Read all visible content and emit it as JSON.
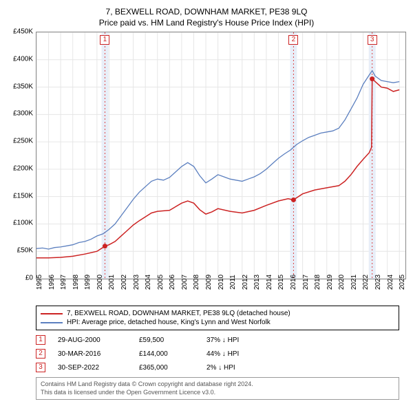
{
  "title": "7, BEXWELL ROAD, DOWNHAM MARKET, PE38 9LQ",
  "subtitle": "Price paid vs. HM Land Registry's House Price Index (HPI)",
  "chart": {
    "type": "line",
    "background_color": "#ffffff",
    "grid_color": "#e6e6e6",
    "border_color": "#888888",
    "x_range": [
      1995,
      2025.5
    ],
    "y_range": [
      0,
      450000
    ],
    "y_ticks": [
      0,
      50000,
      100000,
      150000,
      200000,
      250000,
      300000,
      350000,
      400000,
      450000
    ],
    "y_tick_labels": [
      "£0",
      "£50K",
      "£100K",
      "£150K",
      "£200K",
      "£250K",
      "£300K",
      "£350K",
      "£400K",
      "£450K"
    ],
    "x_ticks": [
      1995,
      1996,
      1997,
      1998,
      1999,
      2000,
      2001,
      2002,
      2003,
      2004,
      2005,
      2006,
      2007,
      2008,
      2009,
      2010,
      2011,
      2012,
      2013,
      2014,
      2015,
      2016,
      2017,
      2018,
      2019,
      2020,
      2021,
      2022,
      2023,
      2024,
      2025
    ],
    "font_size_axis": 10,
    "font_size_title": 12,
    "event_band_color": "#e8eef8",
    "event_line_color": "#dd4444",
    "event_line_dash": "2,3",
    "series": [
      {
        "name": "hpi",
        "label": "HPI: Average price, detached house, King's Lynn and West Norfolk",
        "color": "#5b7fbf",
        "line_width": 1.3,
        "data": [
          [
            1995.0,
            55000
          ],
          [
            1995.5,
            56000
          ],
          [
            1996.0,
            54000
          ],
          [
            1996.5,
            57000
          ],
          [
            1997.0,
            58000
          ],
          [
            1997.5,
            60000
          ],
          [
            1998.0,
            62000
          ],
          [
            1998.5,
            66000
          ],
          [
            1999.0,
            68000
          ],
          [
            1999.5,
            72000
          ],
          [
            2000.0,
            78000
          ],
          [
            2000.5,
            82000
          ],
          [
            2001.0,
            90000
          ],
          [
            2001.5,
            100000
          ],
          [
            2002.0,
            115000
          ],
          [
            2002.5,
            130000
          ],
          [
            2003.0,
            145000
          ],
          [
            2003.5,
            158000
          ],
          [
            2004.0,
            168000
          ],
          [
            2004.5,
            178000
          ],
          [
            2005.0,
            182000
          ],
          [
            2005.5,
            180000
          ],
          [
            2006.0,
            185000
          ],
          [
            2006.5,
            195000
          ],
          [
            2007.0,
            205000
          ],
          [
            2007.5,
            212000
          ],
          [
            2008.0,
            205000
          ],
          [
            2008.5,
            188000
          ],
          [
            2009.0,
            175000
          ],
          [
            2009.5,
            182000
          ],
          [
            2010.0,
            190000
          ],
          [
            2010.5,
            186000
          ],
          [
            2011.0,
            182000
          ],
          [
            2011.5,
            180000
          ],
          [
            2012.0,
            178000
          ],
          [
            2012.5,
            182000
          ],
          [
            2013.0,
            186000
          ],
          [
            2013.5,
            192000
          ],
          [
            2014.0,
            200000
          ],
          [
            2014.5,
            210000
          ],
          [
            2015.0,
            220000
          ],
          [
            2015.5,
            228000
          ],
          [
            2016.0,
            235000
          ],
          [
            2016.5,
            245000
          ],
          [
            2017.0,
            252000
          ],
          [
            2017.5,
            258000
          ],
          [
            2018.0,
            262000
          ],
          [
            2018.5,
            266000
          ],
          [
            2019.0,
            268000
          ],
          [
            2019.5,
            270000
          ],
          [
            2020.0,
            275000
          ],
          [
            2020.5,
            290000
          ],
          [
            2021.0,
            310000
          ],
          [
            2021.5,
            330000
          ],
          [
            2022.0,
            355000
          ],
          [
            2022.5,
            372000
          ],
          [
            2022.75,
            380000
          ],
          [
            2023.0,
            370000
          ],
          [
            2023.5,
            362000
          ],
          [
            2024.0,
            360000
          ],
          [
            2024.5,
            358000
          ],
          [
            2025.0,
            360000
          ]
        ]
      },
      {
        "name": "property",
        "label": "7, BEXWELL ROAD, DOWNHAM MARKET, PE38 9LQ (detached house)",
        "color": "#cc2222",
        "line_width": 1.5,
        "data": [
          [
            1995.0,
            38000
          ],
          [
            1996.0,
            38000
          ],
          [
            1997.0,
            39000
          ],
          [
            1998.0,
            41000
          ],
          [
            1999.0,
            45000
          ],
          [
            2000.0,
            50000
          ],
          [
            2000.66,
            59500
          ],
          [
            2001.0,
            62000
          ],
          [
            2001.5,
            68000
          ],
          [
            2002.0,
            78000
          ],
          [
            2002.5,
            88000
          ],
          [
            2003.0,
            98000
          ],
          [
            2003.5,
            106000
          ],
          [
            2004.0,
            113000
          ],
          [
            2004.5,
            120000
          ],
          [
            2005.0,
            123000
          ],
          [
            2006.0,
            125000
          ],
          [
            2007.0,
            138000
          ],
          [
            2007.5,
            142000
          ],
          [
            2008.0,
            138000
          ],
          [
            2008.5,
            126000
          ],
          [
            2009.0,
            118000
          ],
          [
            2009.5,
            122000
          ],
          [
            2010.0,
            128000
          ],
          [
            2011.0,
            123000
          ],
          [
            2012.0,
            120000
          ],
          [
            2013.0,
            125000
          ],
          [
            2014.0,
            134000
          ],
          [
            2015.0,
            142000
          ],
          [
            2015.8,
            146000
          ],
          [
            2016.25,
            144000
          ],
          [
            2017.0,
            155000
          ],
          [
            2018.0,
            162000
          ],
          [
            2019.0,
            166000
          ],
          [
            2020.0,
            170000
          ],
          [
            2020.5,
            178000
          ],
          [
            2021.0,
            190000
          ],
          [
            2021.5,
            205000
          ],
          [
            2022.0,
            218000
          ],
          [
            2022.5,
            230000
          ],
          [
            2022.7,
            240000
          ],
          [
            2022.75,
            365000
          ],
          [
            2023.0,
            360000
          ],
          [
            2023.5,
            350000
          ],
          [
            2024.0,
            348000
          ],
          [
            2024.5,
            342000
          ],
          [
            2025.0,
            345000
          ]
        ]
      }
    ],
    "event_markers": [
      {
        "num": "1",
        "x": 2000.66,
        "y": 59500
      },
      {
        "num": "2",
        "x": 2016.25,
        "y": 144000
      },
      {
        "num": "3",
        "x": 2022.75,
        "y": 365000
      }
    ]
  },
  "legend": {
    "rows": [
      {
        "color": "#cc2222",
        "label": "7, BEXWELL ROAD, DOWNHAM MARKET, PE38 9LQ (detached house)"
      },
      {
        "color": "#5b7fbf",
        "label": "HPI: Average price, detached house, King's Lynn and West Norfolk"
      }
    ]
  },
  "events_table": {
    "rows": [
      {
        "num": "1",
        "date": "29-AUG-2000",
        "price": "£59,500",
        "diff": "37% ↓ HPI"
      },
      {
        "num": "2",
        "date": "30-MAR-2016",
        "price": "£144,000",
        "diff": "44% ↓ HPI"
      },
      {
        "num": "3",
        "date": "30-SEP-2022",
        "price": "£365,000",
        "diff": "2% ↓ HPI"
      }
    ]
  },
  "footer": {
    "line1": "Contains HM Land Registry data © Crown copyright and database right 2024.",
    "line2": "This data is licensed under the Open Government Licence v3.0."
  }
}
